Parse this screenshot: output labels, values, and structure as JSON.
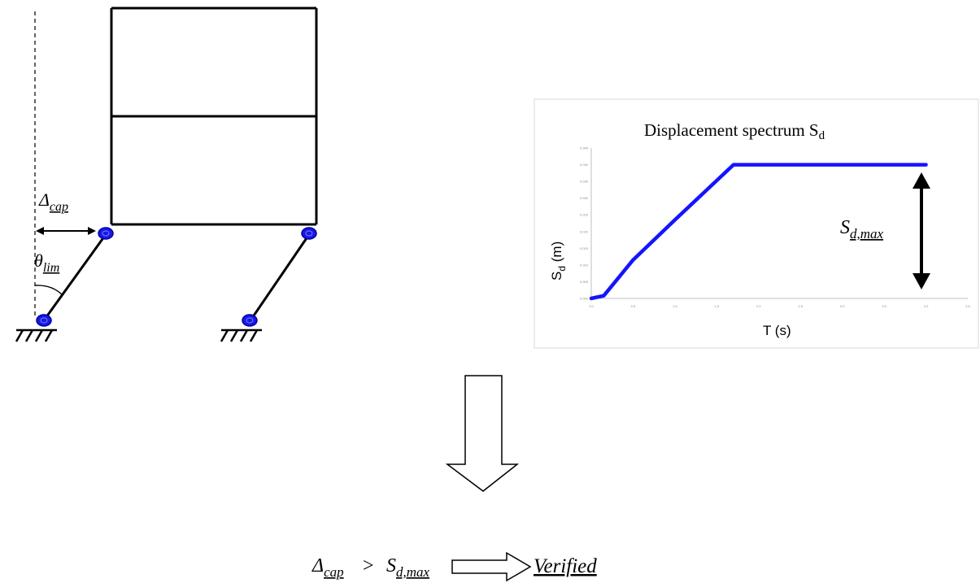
{
  "frame": {
    "delta_cap": {
      "symbol": "Δ",
      "subscript": "cap"
    },
    "theta_lim": {
      "symbol": "θ",
      "subscript": "lim"
    }
  },
  "spectrum": {
    "title_main": "Displacement  spectrum  S",
    "title_sub": "d",
    "ylabel_main": "S",
    "ylabel_sub": "d",
    "ylabel_unit": " (m)",
    "xlabel": "T (s)",
    "sdmax_main": "S",
    "sdmax_sub": "d,max",
    "colors": {
      "curve": "#1414ff",
      "axes": "#bfbfbf",
      "frame": "#d9d9d9"
    }
  },
  "chart_data": {
    "type": "line",
    "title": "Displacement spectrum Sd",
    "xlabel": "T (s)",
    "ylabel": "Sd (m)",
    "x_ticks": [
      "0.0",
      "0.5",
      "1.0",
      "1.5",
      "2.0",
      "2.5",
      "3.0",
      "3.5",
      "4.0",
      "4.5"
    ],
    "y_ticks": [
      "0.000",
      "0.005",
      "0.010",
      "0.015",
      "0.020",
      "0.025",
      "0.030",
      "0.035",
      "0.040",
      "0.045"
    ],
    "xlim": [
      0.0,
      4.5
    ],
    "ylim": [
      0.0,
      0.045
    ],
    "series": [
      {
        "x": [
          0.0,
          0.15,
          0.5,
          1.0,
          1.7,
          4.0
        ],
        "y": [
          0.0,
          0.0008,
          0.0115,
          0.0235,
          0.04,
          0.04
        ]
      }
    ]
  },
  "conclusion": {
    "lhs_symbol": "Δ",
    "lhs_sub": "cap",
    "operator": ">",
    "rhs_main": "S",
    "rhs_sub": "d,max",
    "result": "Verified"
  }
}
